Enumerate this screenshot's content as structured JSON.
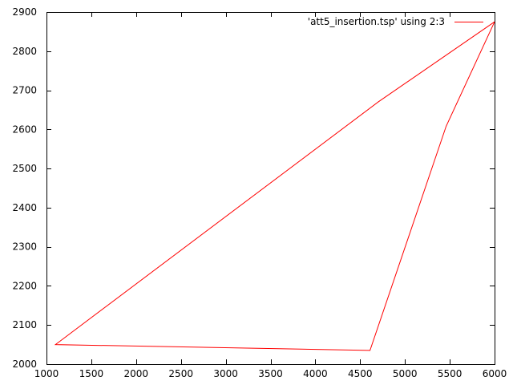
{
  "chart_data": {
    "type": "line",
    "title": "",
    "xlabel": "",
    "ylabel": "",
    "xlim": [
      1000,
      6000
    ],
    "ylim": [
      2000,
      2900
    ],
    "xticks": [
      1000,
      1500,
      2000,
      2500,
      3000,
      3500,
      4000,
      4500,
      5000,
      5500,
      6000
    ],
    "yticks": [
      2000,
      2100,
      2200,
      2300,
      2400,
      2500,
      2600,
      2700,
      2800,
      2900
    ],
    "grid": false,
    "legend_position": "top-right",
    "series": [
      {
        "name": "'att5_insertion.tsp' using 2:3",
        "color": "#ff0000",
        "x": [
          6000,
          5460,
          4610,
          1100,
          4700,
          6000
        ],
        "y": [
          2875,
          2608,
          2035,
          2050,
          2670,
          2875
        ]
      }
    ]
  }
}
